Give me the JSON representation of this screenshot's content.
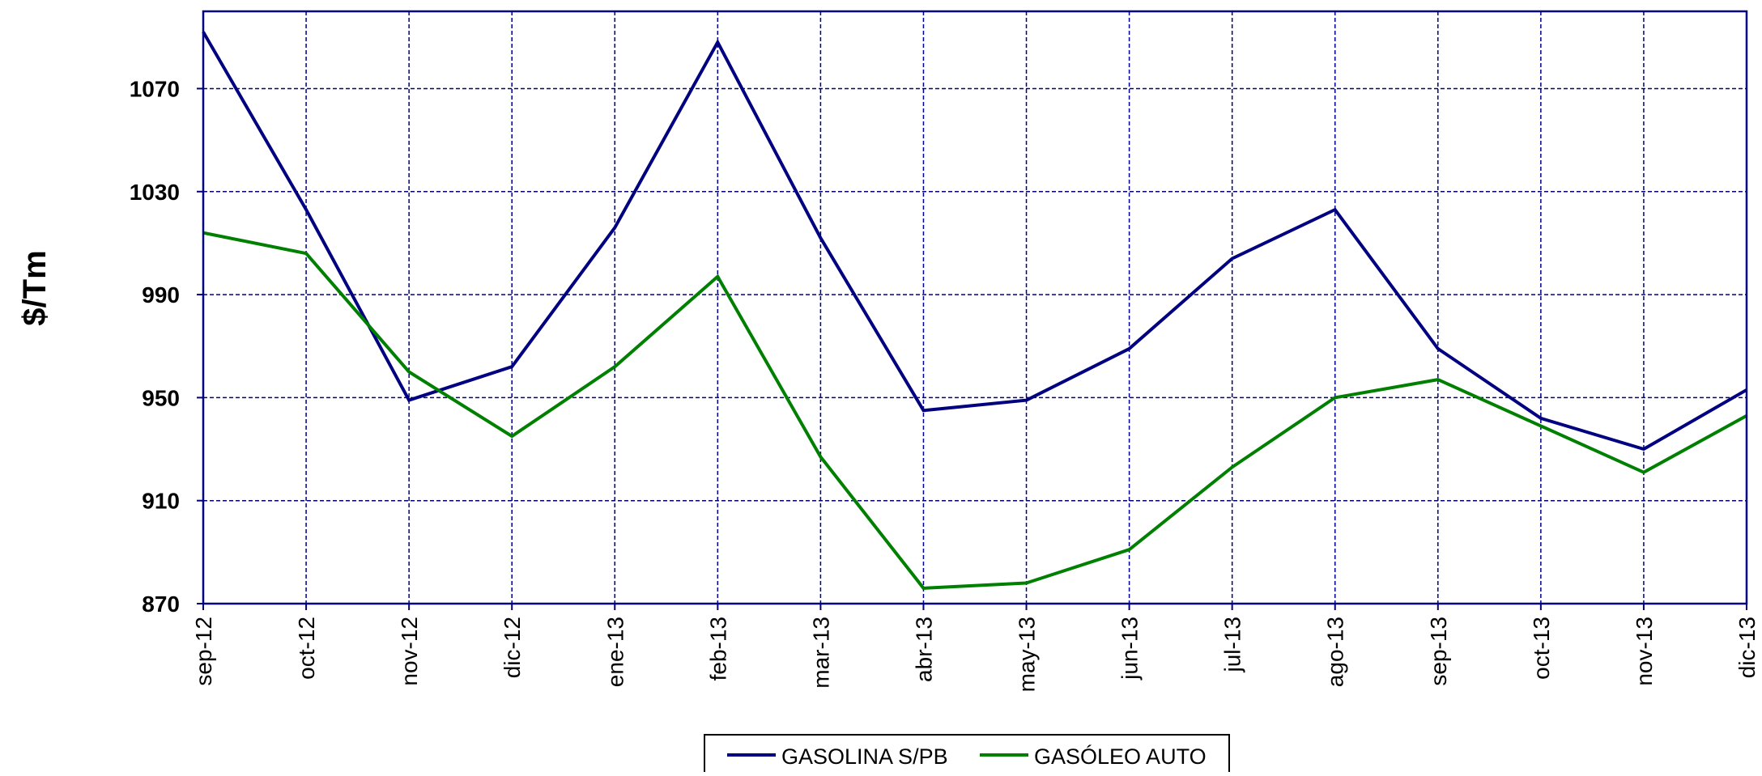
{
  "chart_data": {
    "type": "line",
    "title": "",
    "xlabel": "",
    "ylabel": "$/Tm",
    "categories": [
      "sep-12",
      "oct-12",
      "nov-12",
      "dic-12",
      "ene-13",
      "feb-13",
      "mar-13",
      "abr-13",
      "may-13",
      "jun-13",
      "jul-13",
      "ago-13",
      "sep-13",
      "oct-13",
      "nov-13",
      "dic-13"
    ],
    "ylim": [
      870,
      1100
    ],
    "yticks": [
      870,
      910,
      950,
      990,
      1030,
      1070
    ],
    "grid": true,
    "legend_position": "bottom-center",
    "series": [
      {
        "name": "GASOLINA S/PB",
        "color": "#000080",
        "values": [
          1092,
          1023,
          949,
          962,
          1016,
          1088,
          1012,
          945,
          949,
          969,
          1004,
          1023,
          969,
          942,
          930,
          953
        ]
      },
      {
        "name": "GASÓLEO AUTO",
        "color": "#008000",
        "values": [
          1014,
          1006,
          960,
          935,
          962,
          997,
          927,
          876,
          878,
          891,
          923,
          950,
          957,
          939,
          921,
          943
        ]
      }
    ]
  },
  "colors": {
    "frame": "#000080",
    "grid": "#000080",
    "text": "#000000",
    "background": "#ffffff"
  }
}
